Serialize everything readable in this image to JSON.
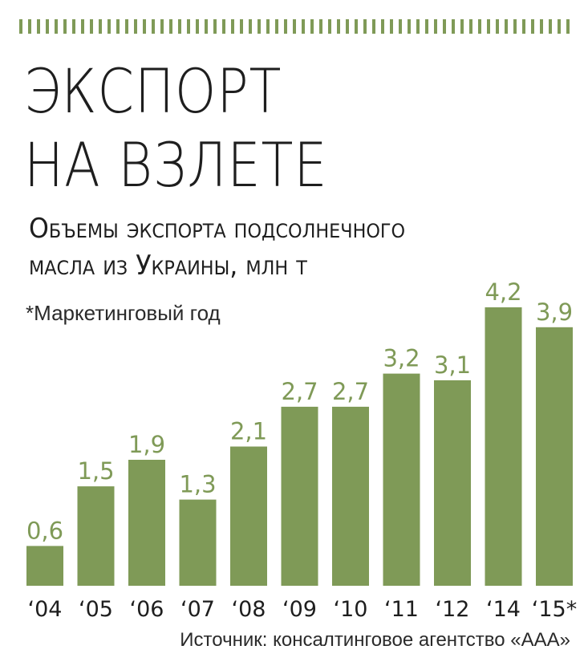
{
  "header": {
    "title_line1": "ЭКСПОРТ",
    "title_line2": "НА ВЗЛЕТЕ",
    "subtitle_line1": "Объемы экспорта подсолнечного",
    "subtitle_line2": "масла из Украины, млн т",
    "note": "*Маркетинговый год"
  },
  "footer": {
    "source": "Источник: консалтинговое агентство «ААА»"
  },
  "colors": {
    "bar": "#7f9a57",
    "value_label": "#7f9a57",
    "text": "#1e1e1e"
  },
  "chart_data": {
    "type": "bar",
    "categories": [
      "‘04",
      "‘05",
      "‘06",
      "‘07",
      "‘08",
      "‘09",
      "‘10",
      "‘11",
      "‘12",
      "‘14",
      "‘15*"
    ],
    "values": [
      0.6,
      1.5,
      1.9,
      1.3,
      2.1,
      2.7,
      2.7,
      3.2,
      3.1,
      4.2,
      3.9
    ],
    "value_labels": [
      "0,6",
      "1,5",
      "1,9",
      "1,3",
      "2,1",
      "2,7",
      "2,7",
      "3,2",
      "3,1",
      "4,2",
      "3,9"
    ],
    "ylim": [
      0,
      4.2
    ],
    "grid": false,
    "legend": "none"
  }
}
